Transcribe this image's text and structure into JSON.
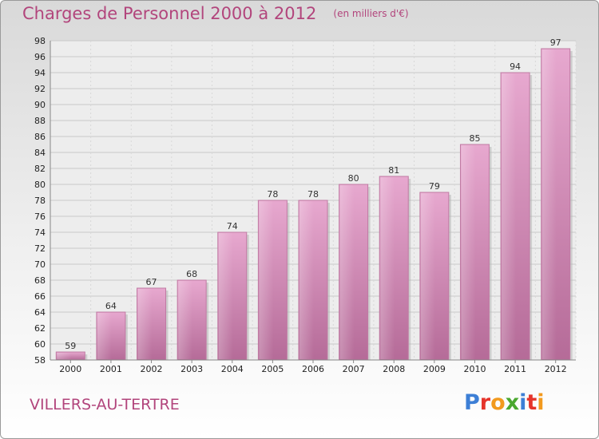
{
  "header": {
    "title": "Charges de Personnel 2000 à 2012",
    "subtitle": "(en milliers d'€)"
  },
  "footer": {
    "commune": "VILLERS-AU-TERTRE",
    "logo_text": "Proxiti",
    "logo_colors": [
      "#3d7fd6",
      "#e5342b",
      "#f29a1e",
      "#4aa82f",
      "#3d7fd6",
      "#e5342b",
      "#f29a1e"
    ]
  },
  "chart_data": {
    "type": "bar",
    "categories": [
      "2000",
      "2001",
      "2002",
      "2003",
      "2004",
      "2005",
      "2006",
      "2007",
      "2008",
      "2009",
      "2010",
      "2011",
      "2012"
    ],
    "values": [
      59,
      64,
      67,
      68,
      74,
      78,
      78,
      80,
      81,
      79,
      85,
      94,
      97
    ],
    "title": "Charges de Personnel 2000 à 2012",
    "subtitle": "(en milliers d'€)",
    "ylim": [
      58,
      98
    ],
    "yticks": [
      58,
      60,
      62,
      64,
      66,
      68,
      70,
      72,
      74,
      76,
      78,
      80,
      82,
      84,
      86,
      88,
      90,
      92,
      94,
      96,
      98
    ],
    "grid": true,
    "bar_color": "#d48ab4"
  }
}
